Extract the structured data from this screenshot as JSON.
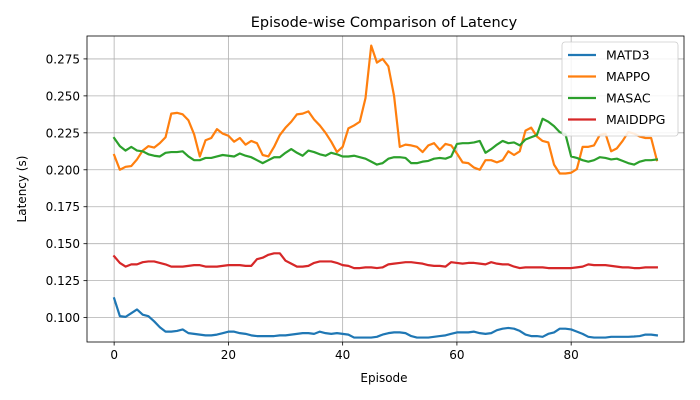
{
  "chart_data": {
    "type": "line",
    "title": "Episode-wise Comparison of Latency",
    "xlabel": "Episode",
    "ylabel": "Latency (s)",
    "xlim": [
      -4.75,
      99.75
    ],
    "ylim": [
      0.0835,
      0.2905
    ],
    "xticks": [
      0,
      20,
      40,
      60,
      80
    ],
    "yticks": [
      0.1,
      0.125,
      0.15,
      0.175,
      0.2,
      0.225,
      0.25,
      0.275
    ],
    "ytick_labels": [
      "0.100",
      "0.125",
      "0.150",
      "0.175",
      "0.200",
      "0.225",
      "0.250",
      "0.275"
    ],
    "grid": true,
    "legend": "top-right",
    "x": [
      0,
      1,
      2,
      3,
      4,
      5,
      6,
      7,
      8,
      9,
      10,
      11,
      12,
      13,
      14,
      15,
      16,
      17,
      18,
      19,
      20,
      21,
      22,
      23,
      24,
      25,
      26,
      27,
      28,
      29,
      30,
      31,
      32,
      33,
      34,
      35,
      36,
      37,
      38,
      39,
      40,
      41,
      42,
      43,
      44,
      45,
      46,
      47,
      48,
      49,
      50,
      51,
      52,
      53,
      54,
      55,
      56,
      57,
      58,
      59,
      60,
      61,
      62,
      63,
      64,
      65,
      66,
      67,
      68,
      69,
      70,
      71,
      72,
      73,
      74,
      75,
      76,
      77,
      78,
      79,
      80,
      81,
      82,
      83,
      84,
      85,
      86,
      87,
      88,
      89,
      90,
      91,
      92,
      93,
      94,
      95
    ],
    "series": [
      {
        "name": "MATD3",
        "color": "#1f77b4",
        "values": [
          0.113,
          0.101,
          0.1005,
          0.103,
          0.1055,
          0.102,
          0.101,
          0.0975,
          0.0935,
          0.0905,
          0.0905,
          0.091,
          0.092,
          0.0895,
          0.089,
          0.0885,
          0.088,
          0.088,
          0.0885,
          0.0895,
          0.0905,
          0.0905,
          0.0895,
          0.089,
          0.088,
          0.0875,
          0.0875,
          0.0875,
          0.0875,
          0.088,
          0.088,
          0.0885,
          0.089,
          0.0895,
          0.0895,
          0.089,
          0.0905,
          0.0895,
          0.089,
          0.0895,
          0.089,
          0.0885,
          0.0865,
          0.0865,
          0.0865,
          0.0865,
          0.087,
          0.0885,
          0.0895,
          0.09,
          0.09,
          0.0895,
          0.0875,
          0.0865,
          0.0865,
          0.0865,
          0.087,
          0.0875,
          0.088,
          0.089,
          0.09,
          0.09,
          0.09,
          0.0905,
          0.0895,
          0.089,
          0.0895,
          0.0915,
          0.0925,
          0.093,
          0.0925,
          0.091,
          0.0885,
          0.0875,
          0.0875,
          0.087,
          0.089,
          0.09,
          0.0925,
          0.0925,
          0.092,
          0.0905,
          0.089,
          0.087,
          0.0865,
          0.0865,
          0.0865,
          0.087,
          0.087,
          0.087,
          0.087,
          0.0872,
          0.0875,
          0.0885,
          0.0885,
          0.088
        ]
      },
      {
        "name": "MAPPO",
        "color": "#ff7f0e",
        "values": [
          0.21,
          0.2,
          0.202,
          0.2025,
          0.207,
          0.213,
          0.216,
          0.215,
          0.218,
          0.222,
          0.238,
          0.2385,
          0.2375,
          0.2335,
          0.224,
          0.209,
          0.22,
          0.2215,
          0.2275,
          0.2245,
          0.223,
          0.219,
          0.2215,
          0.217,
          0.2195,
          0.218,
          0.21,
          0.209,
          0.2155,
          0.2235,
          0.2285,
          0.2325,
          0.2375,
          0.238,
          0.2395,
          0.234,
          0.23,
          0.225,
          0.219,
          0.212,
          0.2155,
          0.228,
          0.23,
          0.2325,
          0.2485,
          0.284,
          0.2725,
          0.275,
          0.27,
          0.25,
          0.2155,
          0.217,
          0.2165,
          0.2155,
          0.212,
          0.2165,
          0.218,
          0.2135,
          0.2175,
          0.2165,
          0.211,
          0.205,
          0.2045,
          0.2015,
          0.2,
          0.2065,
          0.2065,
          0.205,
          0.2065,
          0.2125,
          0.21,
          0.2125,
          0.2265,
          0.2285,
          0.2225,
          0.2195,
          0.2185,
          0.2035,
          0.1975,
          0.1975,
          0.198,
          0.2005,
          0.2155,
          0.2155,
          0.2165,
          0.2235,
          0.2245,
          0.2125,
          0.2145,
          0.2195,
          0.2255,
          0.2245,
          0.2225,
          0.2215,
          0.2215,
          0.2065
        ]
      },
      {
        "name": "MASAC",
        "color": "#2ca02c",
        "values": [
          0.2215,
          0.216,
          0.213,
          0.2155,
          0.213,
          0.2125,
          0.2105,
          0.2095,
          0.209,
          0.2115,
          0.212,
          0.212,
          0.2125,
          0.209,
          0.2065,
          0.2065,
          0.208,
          0.208,
          0.209,
          0.21,
          0.2095,
          0.209,
          0.211,
          0.2095,
          0.2085,
          0.2065,
          0.2045,
          0.2065,
          0.2085,
          0.2085,
          0.2115,
          0.214,
          0.2115,
          0.2095,
          0.213,
          0.212,
          0.2105,
          0.2095,
          0.2115,
          0.2105,
          0.209,
          0.209,
          0.2095,
          0.2085,
          0.2075,
          0.2055,
          0.2035,
          0.2045,
          0.2075,
          0.2085,
          0.2085,
          0.208,
          0.2045,
          0.2045,
          0.2055,
          0.206,
          0.2075,
          0.208,
          0.2075,
          0.209,
          0.2175,
          0.218,
          0.218,
          0.2185,
          0.2195,
          0.2115,
          0.214,
          0.217,
          0.2195,
          0.218,
          0.2185,
          0.2165,
          0.2205,
          0.222,
          0.2235,
          0.2345,
          0.2325,
          0.2295,
          0.2255,
          0.224,
          0.209,
          0.208,
          0.2065,
          0.2055,
          0.2065,
          0.2085,
          0.208,
          0.207,
          0.2075,
          0.206,
          0.2045,
          0.2035,
          0.2055,
          0.2065,
          0.2065,
          0.207
        ]
      },
      {
        "name": "MAIDDPG",
        "color": "#d62728",
        "values": [
          0.1415,
          0.137,
          0.1345,
          0.136,
          0.136,
          0.1375,
          0.138,
          0.138,
          0.137,
          0.136,
          0.1345,
          0.1345,
          0.1345,
          0.135,
          0.1355,
          0.1355,
          0.1345,
          0.1345,
          0.1345,
          0.135,
          0.1355,
          0.1355,
          0.1355,
          0.135,
          0.135,
          0.1395,
          0.1405,
          0.1425,
          0.1435,
          0.1435,
          0.1385,
          0.1365,
          0.1345,
          0.1345,
          0.135,
          0.137,
          0.138,
          0.138,
          0.138,
          0.137,
          0.1355,
          0.135,
          0.1335,
          0.1335,
          0.134,
          0.134,
          0.1335,
          0.134,
          0.136,
          0.1365,
          0.137,
          0.1375,
          0.1375,
          0.137,
          0.1365,
          0.1355,
          0.135,
          0.135,
          0.1345,
          0.1375,
          0.137,
          0.1365,
          0.137,
          0.137,
          0.1365,
          0.136,
          0.1375,
          0.1365,
          0.136,
          0.136,
          0.1345,
          0.1335,
          0.134,
          0.134,
          0.134,
          0.134,
          0.1335,
          0.1335,
          0.1335,
          0.1335,
          0.1335,
          0.134,
          0.1345,
          0.136,
          0.1355,
          0.1355,
          0.1355,
          0.135,
          0.1345,
          0.134,
          0.134,
          0.1335,
          0.1335,
          0.134,
          0.134,
          0.134
        ]
      }
    ]
  }
}
